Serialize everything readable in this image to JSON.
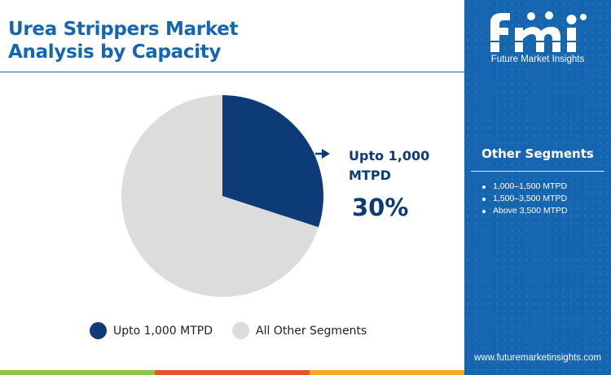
{
  "header": {
    "title_line1": "Urea Strippers Market",
    "title_line2": "Analysis by Capacity"
  },
  "chart_data": {
    "type": "pie",
    "title": "Urea Strippers Market Analysis by Capacity",
    "slices": [
      {
        "label": "Upto 1,000 MTPD",
        "value": 30,
        "color": "#0d3b78"
      },
      {
        "label": "All Other Segments",
        "value": 70,
        "color": "#dcdcdc"
      }
    ],
    "legend_position": "bottom",
    "callout": {
      "label": "Upto 1,000 MTPD",
      "label_line1": "Upto 1,000",
      "label_line2": "MTPD",
      "value_text": "30%"
    }
  },
  "legend": {
    "items": [
      {
        "label": "Upto 1,000 MTPD",
        "color": "#0d3b78"
      },
      {
        "label": "All Other Segments",
        "color": "#dcdcdc"
      }
    ]
  },
  "sidebar": {
    "logo_letters": "fmi",
    "logo_text": "Future Market Insights",
    "other_segments_title": "Other Segments",
    "other_segments": [
      "1,000–1,500 MTPD",
      "1,500–3,500 MTPD",
      "Above 3,500 MTPD"
    ],
    "website": "www.futuremarketinsights.com",
    "background_color": "#1565b0"
  },
  "bottom_bar_colors": [
    "#8dc63f",
    "#e8522a",
    "#f5a623"
  ]
}
